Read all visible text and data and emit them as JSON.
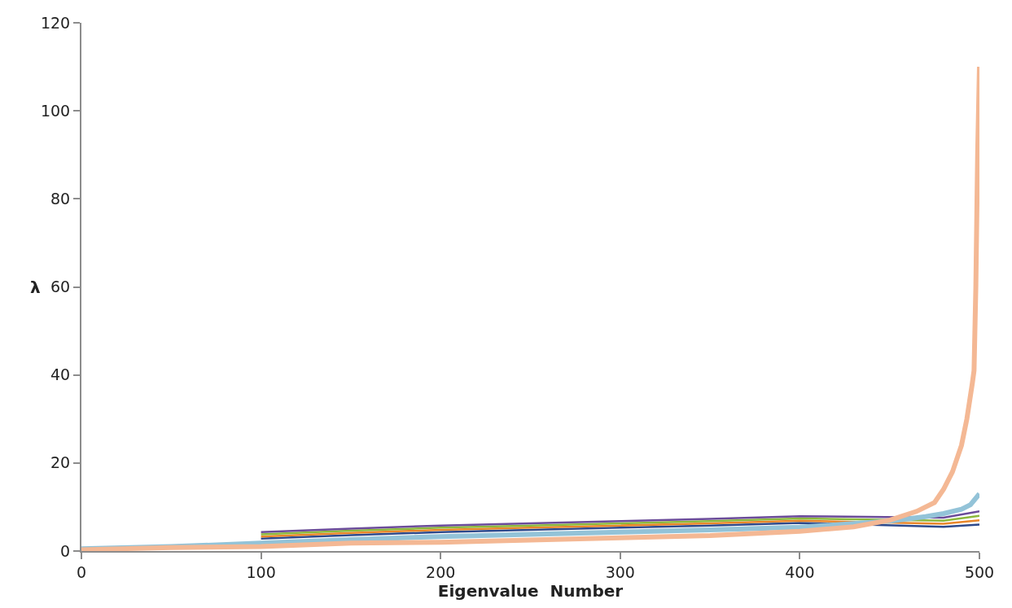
{
  "chart_data": {
    "type": "line",
    "xlabel": "Eigenvalue  Number",
    "ylabel": "λ",
    "xlim": [
      0,
      500
    ],
    "ylim": [
      0,
      120
    ],
    "xticks": [
      0,
      100,
      200,
      300,
      400,
      500
    ],
    "yticks": [
      0,
      20,
      40,
      60,
      80,
      100,
      120
    ],
    "marker": "none",
    "line_style": "solid",
    "series": [
      {
        "color": "#2e4a8c",
        "x": [
          100,
          150,
          200,
          250,
          300,
          350,
          400,
          480,
          500
        ],
        "values": [
          2.8,
          3.6,
          4.3,
          4.8,
          5.3,
          5.8,
          6.4,
          5.5,
          6.0
        ]
      },
      {
        "color": "#e8862a",
        "x": [
          100,
          150,
          200,
          250,
          300,
          350,
          400,
          480,
          500
        ],
        "values": [
          3.3,
          4.1,
          4.8,
          5.3,
          5.8,
          6.3,
          6.9,
          6.2,
          7.0
        ]
      },
      {
        "color": "#8cb83c",
        "x": [
          100,
          150,
          200,
          250,
          300,
          350,
          400,
          480,
          500
        ],
        "values": [
          3.8,
          4.6,
          5.3,
          5.8,
          6.3,
          6.8,
          7.4,
          6.9,
          8.0
        ]
      },
      {
        "color": "#6b4c9a",
        "x": [
          100,
          150,
          200,
          250,
          300,
          350,
          400,
          480,
          500
        ],
        "values": [
          4.3,
          5.1,
          5.8,
          6.3,
          6.8,
          7.3,
          7.9,
          7.6,
          9.0
        ]
      },
      {
        "color": "#93c3d8",
        "x": [
          0,
          50,
          100,
          150,
          200,
          250,
          300,
          350,
          400,
          450,
          470,
          480,
          490,
          495,
          500
        ],
        "values": [
          0.5,
          1.0,
          1.8,
          2.6,
          3.3,
          3.8,
          4.3,
          4.8,
          5.4,
          6.8,
          7.8,
          8.5,
          9.5,
          10.5,
          13.0
        ]
      },
      {
        "color": "#f4b894",
        "x": [
          0,
          50,
          100,
          150,
          200,
          250,
          300,
          350,
          400,
          430,
          450,
          465,
          475,
          480,
          485,
          490,
          493,
          496,
          497,
          498,
          499,
          500
        ],
        "values": [
          0.3,
          0.8,
          1.0,
          1.8,
          2.0,
          2.5,
          3.0,
          3.5,
          4.5,
          5.5,
          7.0,
          9.0,
          11.0,
          14.0,
          18.0,
          24.0,
          30.0,
          38.0,
          41.0,
          60.0,
          90.0,
          110.0
        ]
      }
    ]
  }
}
